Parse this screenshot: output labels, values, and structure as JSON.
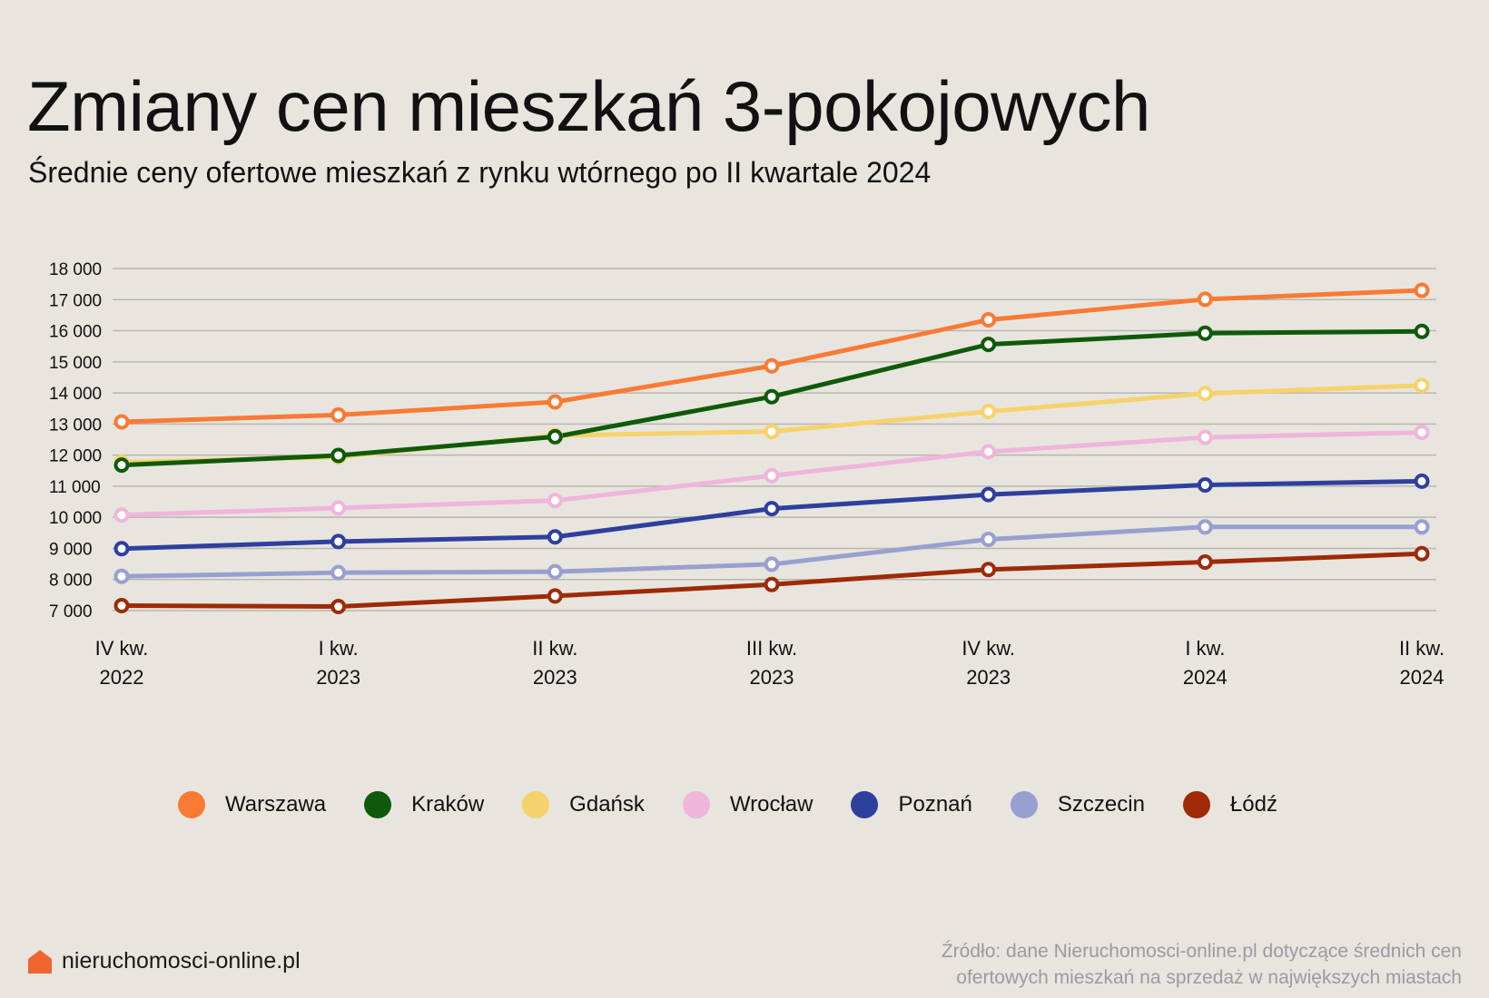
{
  "header": {
    "title": "Zmiany cen mieszkań 3-pokojowych",
    "subtitle": "Średnie ceny ofertowe mieszkań z rynku wtórnego po II kwartale 2024"
  },
  "chart_data": {
    "type": "line",
    "title": "Zmiany cen mieszkań 3-pokojowych",
    "subtitle": "Średnie ceny ofertowe mieszkań z rynku wtórnego po II kwartale 2024",
    "xlabel": "",
    "ylabel": "",
    "categories": [
      [
        "IV kw.",
        "2022"
      ],
      [
        "I kw.",
        "2023"
      ],
      [
        "II kw.",
        "2023"
      ],
      [
        "III kw.",
        "2023"
      ],
      [
        "IV kw.",
        "2023"
      ],
      [
        "I kw.",
        "2024"
      ],
      [
        "II kw.",
        "2024"
      ]
    ],
    "ylim": [
      7000,
      18000
    ],
    "yticks": [
      18000,
      17000,
      16000,
      15000,
      14000,
      13000,
      12000,
      11000,
      10000,
      9000,
      8000,
      7000
    ],
    "ytick_labels": [
      "18 000",
      "17 000",
      "16 000",
      "15 000",
      "14 000",
      "13 000",
      "12 000",
      "11 000",
      "10 000",
      "9 000",
      "8 000",
      "7 000"
    ],
    "grid": true,
    "legend_position": "bottom",
    "series": [
      {
        "name": "Warszawa",
        "color": "#f97a35",
        "values": [
          13070,
          13290,
          13710,
          14870,
          16350,
          17010,
          17300
        ]
      },
      {
        "name": "Kraków",
        "color": "#0f5a0a",
        "values": [
          11680,
          11990,
          12590,
          13880,
          15560,
          15920,
          15980
        ]
      },
      {
        "name": "Gdańsk",
        "color": "#f6d36a",
        "values": [
          11770,
          11940,
          12630,
          12760,
          13400,
          13980,
          14240
        ]
      },
      {
        "name": "Wrocław",
        "color": "#efb5da",
        "values": [
          10070,
          10300,
          10540,
          11340,
          12110,
          12570,
          12730
        ]
      },
      {
        "name": "Poznań",
        "color": "#2f3f9e",
        "values": [
          8990,
          9220,
          9370,
          10280,
          10730,
          11040,
          11160
        ]
      },
      {
        "name": "Szczecin",
        "color": "#98a0d0",
        "values": [
          8100,
          8220,
          8250,
          8490,
          9290,
          9690,
          9690
        ]
      },
      {
        "name": "Łódź",
        "color": "#9e2a08",
        "values": [
          7160,
          7130,
          7470,
          7840,
          8320,
          8560,
          8830
        ]
      }
    ]
  },
  "footer": {
    "logo_text": "nieruchomosci-online.pl",
    "logo_icon": "house-icon",
    "logo_color": "#f0652e",
    "source_line1": "Źródło: dane Nieruchomosci-online.pl dotyczące średnich cen",
    "source_line2": "ofertowych mieszkań na sprzedaż w największych miastach"
  }
}
